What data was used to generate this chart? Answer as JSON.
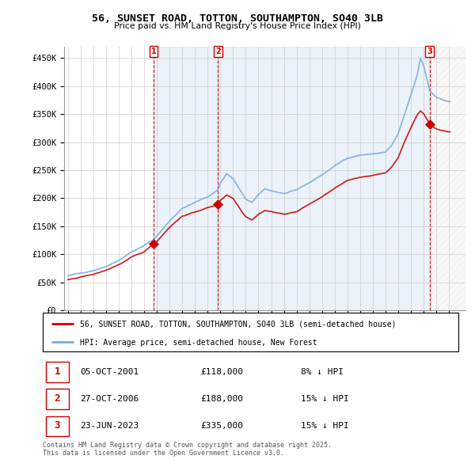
{
  "title": "56, SUNSET ROAD, TOTTON, SOUTHAMPTON, SO40 3LB",
  "subtitle": "Price paid vs. HM Land Registry's House Price Index (HPI)",
  "background_color": "#ffffff",
  "grid_color": "#cccccc",
  "property_color": "#cc0000",
  "hpi_color": "#7aabdb",
  "shade_color": "#ddeeff",
  "legend_label_property": "56, SUNSET ROAD, TOTTON, SOUTHAMPTON, SO40 3LB (semi-detached house)",
  "legend_label_hpi": "HPI: Average price, semi-detached house, New Forest",
  "transactions": [
    {
      "label": "1",
      "date": "05-OCT-2001",
      "price": "£118,000",
      "vs_hpi": "8% ↓ HPI"
    },
    {
      "label": "2",
      "date": "27-OCT-2006",
      "price": "£188,000",
      "vs_hpi": "15% ↓ HPI"
    },
    {
      "label": "3",
      "date": "23-JUN-2023",
      "price": "£335,000",
      "vs_hpi": "15% ↓ HPI"
    }
  ],
  "footer": "Contains HM Land Registry data © Crown copyright and database right 2025.\nThis data is licensed under the Open Government Licence v3.0.",
  "transaction_years": [
    2001.75,
    2006.82,
    2023.47
  ],
  "transaction_prices": [
    118000,
    188000,
    335000
  ],
  "ylim": [
    0,
    470000
  ],
  "yticks": [
    0,
    50000,
    100000,
    150000,
    200000,
    250000,
    300000,
    350000,
    400000,
    450000
  ],
  "xlim_left": 1994.7,
  "xlim_right": 2026.3
}
